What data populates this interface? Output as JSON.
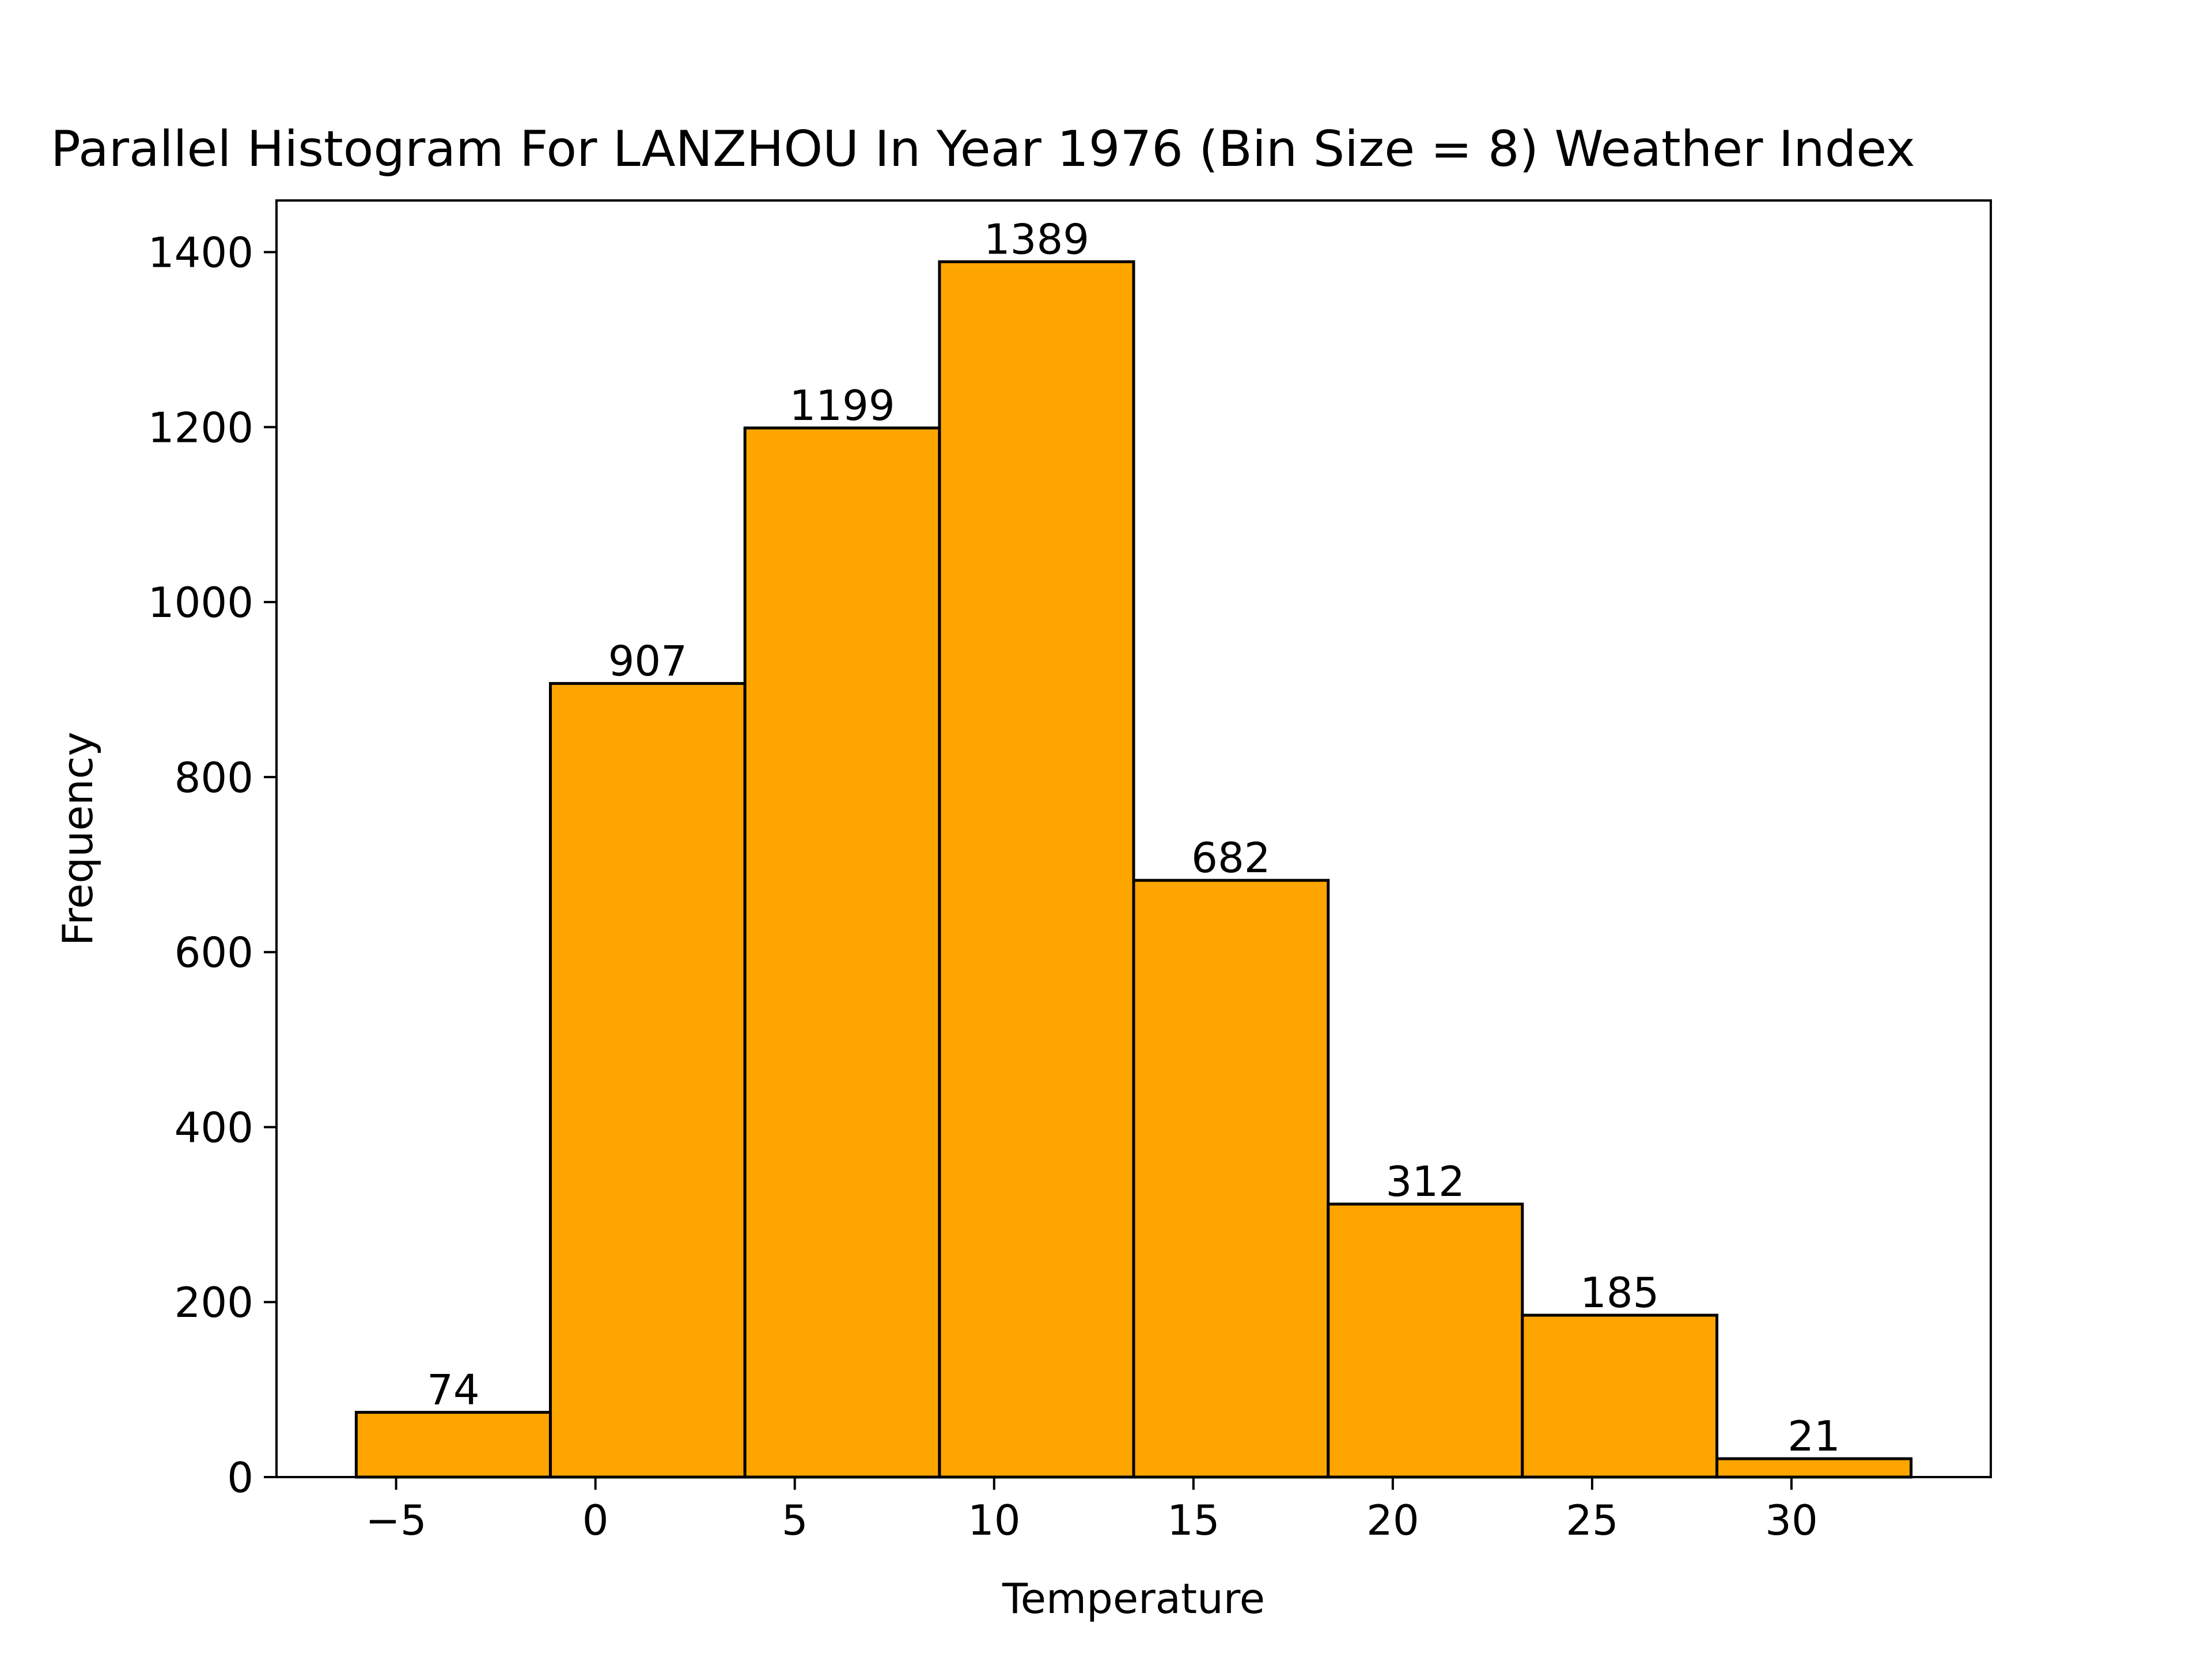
{
  "chart_data": {
    "type": "bar",
    "title": "Parallel Histogram For LANZHOU In Year 1976 (Bin Size = 8) Weather Index",
    "xlabel": "Temperature",
    "ylabel": "Frequency",
    "bin_edges": [
      -6.0,
      -1.13,
      3.75,
      8.63,
      13.5,
      18.38,
      23.25,
      28.13,
      33.0
    ],
    "values": [
      74,
      907,
      1199,
      1389,
      682,
      312,
      185,
      21
    ],
    "value_labels": [
      "74",
      "907",
      "1199",
      "1389",
      "682",
      "312",
      "185",
      "21"
    ],
    "xlim": [
      -8.0,
      35.0
    ],
    "ylim": [
      0,
      1459
    ],
    "xticks": [
      -5,
      0,
      5,
      10,
      15,
      20,
      25,
      30
    ],
    "xtick_labels": [
      "−5",
      "0",
      "5",
      "10",
      "15",
      "20",
      "25",
      "30"
    ],
    "yticks": [
      0,
      200,
      400,
      600,
      800,
      1000,
      1200,
      1400
    ],
    "ytick_labels": [
      "0",
      "200",
      "400",
      "600",
      "800",
      "1000",
      "1200",
      "1400"
    ],
    "bar_color": "#ffa500",
    "edge_color": "#000000",
    "grid": false,
    "legend": "none"
  }
}
